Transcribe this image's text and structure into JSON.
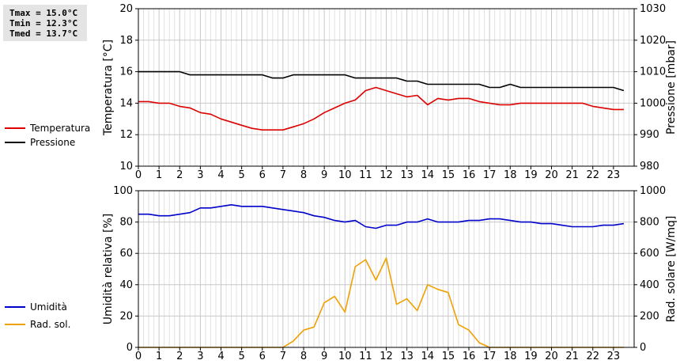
{
  "stats": {
    "tmax": "Tmax = 15.0°C",
    "tmin": "Tmin = 12.3°C",
    "tmed": "Tmed = 13.7°C"
  },
  "chart_data": [
    {
      "type": "line",
      "ylabel": "Temperatura [°C]",
      "y2label": "Pressione [mbar]",
      "ylim": [
        10,
        20
      ],
      "y2lim": [
        980,
        1030
      ],
      "xlim": [
        0,
        24
      ],
      "yticks": [
        10,
        12,
        14,
        16,
        18,
        20
      ],
      "y2ticks": [
        980,
        990,
        1000,
        1010,
        1020,
        1030
      ],
      "xticks": [
        0,
        1,
        2,
        3,
        4,
        5,
        6,
        7,
        8,
        9,
        10,
        11,
        12,
        13,
        14,
        15,
        16,
        17,
        18,
        19,
        20,
        21,
        22,
        23
      ],
      "grid": true,
      "legend": "left-outside",
      "series": [
        {
          "name": "Temperatura",
          "color": "#dd0000",
          "axis": "left",
          "x": [
            0,
            0.5,
            1,
            1.5,
            2,
            2.5,
            3,
            3.5,
            4,
            4.5,
            5,
            5.5,
            6,
            6.5,
            7,
            7.5,
            8,
            8.5,
            9,
            9.5,
            10,
            10.5,
            11,
            11.5,
            12,
            12.5,
            13,
            13.5,
            14,
            14.5,
            15,
            15.5,
            16,
            16.5,
            17,
            17.5,
            18,
            18.5,
            19,
            19.5,
            20,
            20.5,
            21,
            21.5,
            22,
            22.5,
            23,
            23.5
          ],
          "y": [
            14.1,
            14.1,
            14.0,
            14.0,
            13.8,
            13.7,
            13.4,
            13.3,
            13.0,
            12.8,
            12.6,
            12.4,
            12.3,
            12.3,
            12.3,
            12.5,
            12.7,
            13.0,
            13.4,
            13.7,
            14.0,
            14.2,
            14.8,
            15.0,
            14.8,
            14.6,
            14.4,
            14.5,
            13.9,
            14.3,
            14.2,
            14.3,
            14.3,
            14.1,
            14.0,
            13.9,
            13.9,
            14.0,
            14.0,
            14.0,
            14.0,
            14.0,
            14.0,
            14.0,
            13.8,
            13.7,
            13.6,
            13.6
          ]
        },
        {
          "name": "Pressione",
          "color": "#000000",
          "axis": "right",
          "x": [
            0,
            0.5,
            1,
            1.5,
            2,
            2.5,
            3,
            3.5,
            4,
            4.5,
            5,
            5.5,
            6,
            6.5,
            7,
            7.5,
            8,
            8.5,
            9,
            9.5,
            10,
            10.5,
            11,
            11.5,
            12,
            12.5,
            13,
            13.5,
            14,
            14.5,
            15,
            15.5,
            16,
            16.5,
            17,
            17.5,
            18,
            18.5,
            19,
            19.5,
            20,
            20.5,
            21,
            21.5,
            22,
            22.5,
            23,
            23.5
          ],
          "y": [
            1010,
            1010,
            1010,
            1010,
            1010,
            1009,
            1009,
            1009,
            1009,
            1009,
            1009,
            1009,
            1009,
            1008,
            1008,
            1009,
            1009,
            1009,
            1009,
            1009,
            1009,
            1008,
            1008,
            1008,
            1008,
            1008,
            1007,
            1007,
            1006,
            1006,
            1006,
            1006,
            1006,
            1006,
            1005,
            1005,
            1006,
            1005,
            1005,
            1005,
            1005,
            1005,
            1005,
            1005,
            1005,
            1005,
            1005,
            1004
          ]
        }
      ]
    },
    {
      "type": "line",
      "ylabel": "Umidità relativa [%]",
      "y2label": "Rad. solare [W/mq]",
      "ylim": [
        0,
        100
      ],
      "y2lim": [
        0,
        1000
      ],
      "xlim": [
        0,
        24
      ],
      "yticks": [
        0,
        20,
        40,
        60,
        80,
        100
      ],
      "y2ticks": [
        0,
        200,
        400,
        600,
        800,
        1000
      ],
      "xticks": [
        0,
        1,
        2,
        3,
        4,
        5,
        6,
        7,
        8,
        9,
        10,
        11,
        12,
        13,
        14,
        15,
        16,
        17,
        18,
        19,
        20,
        21,
        22,
        23
      ],
      "grid": true,
      "legend": "left-outside",
      "series": [
        {
          "name": "Umidità",
          "color": "#0000cc",
          "axis": "left",
          "x": [
            0,
            0.5,
            1,
            1.5,
            2,
            2.5,
            3,
            3.5,
            4,
            4.5,
            5,
            5.5,
            6,
            6.5,
            7,
            7.5,
            8,
            8.5,
            9,
            9.5,
            10,
            10.5,
            11,
            11.5,
            12,
            12.5,
            13,
            13.5,
            14,
            14.5,
            15,
            15.5,
            16,
            16.5,
            17,
            17.5,
            18,
            18.5,
            19,
            19.5,
            20,
            20.5,
            21,
            21.5,
            22,
            22.5,
            23,
            23.5
          ],
          "y": [
            85,
            85,
            84,
            84,
            85,
            86,
            89,
            89,
            90,
            91,
            90,
            90,
            90,
            89,
            88,
            87,
            86,
            84,
            83,
            81,
            80,
            81,
            77,
            76,
            78,
            78,
            80,
            80,
            82,
            80,
            80,
            80,
            81,
            81,
            82,
            82,
            81,
            80,
            80,
            79,
            79,
            78,
            77,
            77,
            77,
            78,
            78,
            79
          ]
        },
        {
          "name": "Rad. sol.",
          "color": "#f0a000",
          "axis": "right",
          "x": [
            0,
            0.5,
            1,
            1.5,
            2,
            2.5,
            3,
            3.5,
            4,
            4.5,
            5,
            5.5,
            6,
            6.5,
            7,
            7.5,
            8,
            8.5,
            9,
            9.5,
            10,
            10.5,
            11,
            11.5,
            12,
            12.5,
            13,
            13.5,
            14,
            14.5,
            15,
            15.5,
            16,
            16.5,
            17,
            17.5,
            18,
            18.5,
            19,
            19.5,
            20,
            20.5,
            21,
            21.5,
            22,
            22.5,
            23,
            23.5
          ],
          "y": [
            0,
            0,
            0,
            0,
            0,
            0,
            0,
            0,
            0,
            0,
            0,
            0,
            0,
            0,
            0,
            40,
            110,
            130,
            285,
            325,
            225,
            515,
            560,
            430,
            570,
            275,
            310,
            235,
            400,
            370,
            350,
            145,
            110,
            30,
            0,
            0,
            0,
            0,
            0,
            0,
            0,
            0,
            0,
            0,
            0,
            0,
            0,
            0
          ]
        }
      ]
    }
  ]
}
